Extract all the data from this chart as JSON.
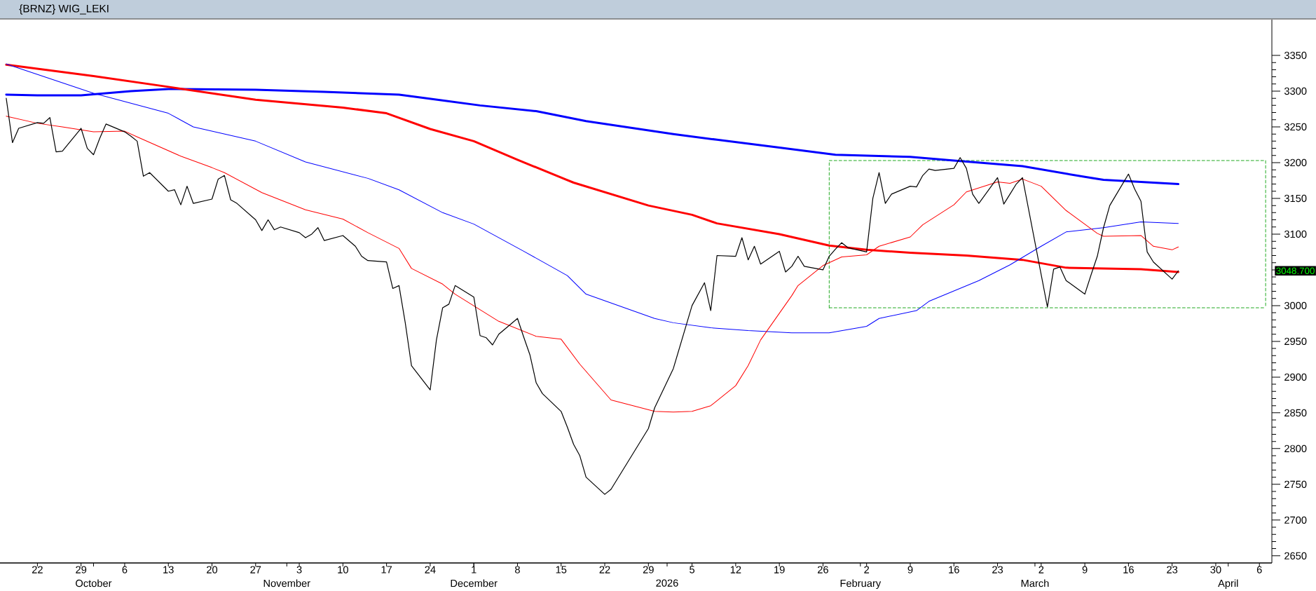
{
  "chart_data": {
    "type": "line",
    "title": "{BRNZ} WIG_LEKI",
    "xlim": [
      "2025-09-16",
      "2026-04-08"
    ],
    "ylim": [
      2640,
      3400
    ],
    "xticks": [
      {
        "value": "2025-09-22",
        "label": "22"
      },
      {
        "value": "2025-09-29",
        "label": "29"
      },
      {
        "value": "2025-10-06",
        "label": "6"
      },
      {
        "value": "2025-10-13",
        "label": "13"
      },
      {
        "value": "2025-10-20",
        "label": "20"
      },
      {
        "value": "2025-10-27",
        "label": "27"
      },
      {
        "value": "2025-11-03",
        "label": "3"
      },
      {
        "value": "2025-11-10",
        "label": "10"
      },
      {
        "value": "2025-11-17",
        "label": "17"
      },
      {
        "value": "2025-11-24",
        "label": "24"
      },
      {
        "value": "2025-12-01",
        "label": "1"
      },
      {
        "value": "2025-12-08",
        "label": "8"
      },
      {
        "value": "2025-12-15",
        "label": "15"
      },
      {
        "value": "2025-12-22",
        "label": "22"
      },
      {
        "value": "2025-12-29",
        "label": "29"
      },
      {
        "value": "2026-01-05",
        "label": "5"
      },
      {
        "value": "2026-01-12",
        "label": "12"
      },
      {
        "value": "2026-01-19",
        "label": "19"
      },
      {
        "value": "2026-01-26",
        "label": "26"
      },
      {
        "value": "2026-02-02",
        "label": "2"
      },
      {
        "value": "2026-02-09",
        "label": "9"
      },
      {
        "value": "2026-02-16",
        "label": "16"
      },
      {
        "value": "2026-02-23",
        "label": "23"
      },
      {
        "value": "2026-03-02",
        "label": "2"
      },
      {
        "value": "2026-03-09",
        "label": "9"
      },
      {
        "value": "2026-03-16",
        "label": "16"
      },
      {
        "value": "2026-03-23",
        "label": "23"
      },
      {
        "value": "2026-03-30",
        "label": "30"
      },
      {
        "value": "2026-04-06",
        "label": "6"
      }
    ],
    "x2lim": [
      "2025-09-16",
      "2026-04-08"
    ],
    "x2ticks": [
      {
        "value": "2025-10-01",
        "label": "October"
      },
      {
        "value": "2025-11-01",
        "label": "November"
      },
      {
        "value": "2025-12-01",
        "label": "December"
      },
      {
        "value": "2026-01-01",
        "label": "2026"
      },
      {
        "value": "2026-02-01",
        "label": "February"
      },
      {
        "value": "2026-03-01",
        "label": "March"
      },
      {
        "value": "2026-04-01",
        "label": "April"
      }
    ],
    "yticks": [
      2650,
      2700,
      2750,
      2800,
      2850,
      2900,
      2950,
      3000,
      {
        "value": 3050,
        "label": null
      },
      3100,
      3150,
      3200,
      3250,
      3300,
      3350
    ],
    "annotations": [
      "3048.700"
    ],
    "series": [
      {
        "type": "line",
        "color": "#22aa22",
        "line_style": "dashed",
        "x": [
          "2026-01-27",
          "2026-01-27",
          "2026-04-07",
          "2026-04-07"
        ],
        "values": [
          2997,
          3203,
          3203,
          2997
        ]
      },
      {
        "type": "line",
        "color": "#22aa22",
        "line_style": "dashed",
        "x": [
          "2026-01-27",
          "2026-04-07"
        ],
        "values": [
          2997,
          2997
        ]
      },
      {
        "color": "#0000ff",
        "x": [
          "2025-09-17",
          "2025-09-22",
          "2025-09-29",
          "2025-10-07",
          "2025-10-13",
          "2025-10-27",
          "2025-11-07",
          "2025-11-19",
          "2025-11-26",
          "2025-12-02",
          "2025-12-11",
          "2025-12-19",
          "2026-01-02",
          "2026-01-09",
          "2026-01-19",
          "2026-01-28",
          "2026-02-09",
          "2026-02-16",
          "2026-02-27",
          "2026-03-09",
          "2026-03-12",
          "2026-03-24"
        ],
        "values": [
          3295,
          3294,
          3294,
          3300,
          3303,
          3302,
          3299,
          3295,
          3287,
          3280,
          3272,
          3258,
          3240,
          3232,
          3221,
          3211,
          3208,
          3203,
          3195,
          3180,
          3176,
          3170
        ]
      },
      {
        "color": "#ff0000",
        "x": [
          "2025-09-17",
          "2025-10-01",
          "2025-10-13",
          "2025-10-27",
          "2025-11-10",
          "2025-11-17",
          "2025-11-24",
          "2025-12-01",
          "2025-12-08",
          "2025-12-17",
          "2025-12-29",
          "2026-01-05",
          "2026-01-09",
          "2026-01-19",
          "2026-01-27",
          "2026-02-02",
          "2026-02-09",
          "2026-02-18",
          "2026-02-27",
          "2026-03-06",
          "2026-03-18",
          "2026-03-24"
        ],
        "values": [
          3337,
          3321,
          3306,
          3288,
          3277,
          3269,
          3247,
          3230,
          3204,
          3172,
          3140,
          3127,
          3115,
          3100,
          3084,
          3078,
          3074,
          3070,
          3064,
          3053,
          3051,
          3047
        ]
      },
      {
        "color": "#0000ff",
        "x": [
          "2025-09-17",
          "2025-10-01",
          "2025-10-13",
          "2025-10-17",
          "2025-10-27",
          "2025-11-04",
          "2025-11-14",
          "2025-11-19",
          "2025-11-26",
          "2025-12-01",
          "2025-12-09",
          "2025-12-16",
          "2025-12-19",
          "2025-12-30",
          "2026-01-02",
          "2026-01-08",
          "2026-01-14",
          "2026-01-21",
          "2026-01-27",
          "2026-02-02",
          "2026-02-04",
          "2026-02-10",
          "2026-02-12",
          "2026-02-20",
          "2026-02-25",
          "2026-03-02",
          "2026-03-06",
          "2026-03-12",
          "2026-03-18",
          "2026-03-24"
        ],
        "values": [
          3338,
          3297,
          3269,
          3250,
          3230,
          3201,
          3178,
          3162,
          3130,
          3114,
          3076,
          3042,
          3016,
          2982,
          2976,
          2969,
          2965,
          2962,
          2962,
          2971,
          2982,
          2993,
          3006,
          3035,
          3057,
          3083,
          3103,
          3109,
          3117,
          3115
        ]
      },
      {
        "color": "#ff0000",
        "x": [
          "2025-09-17",
          "2025-09-22",
          "2025-09-26",
          "2025-10-01",
          "2025-10-06",
          "2025-10-08",
          "2025-10-15",
          "2025-10-20",
          "2025-10-22",
          "2025-10-28",
          "2025-11-04",
          "2025-11-10",
          "2025-11-14",
          "2025-11-19",
          "2025-11-21",
          "2025-11-26",
          "2025-11-28",
          "2025-12-05",
          "2025-12-11",
          "2025-12-15",
          "2025-12-18",
          "2025-12-23",
          "2025-12-30",
          "2026-01-02",
          "2026-01-05",
          "2026-01-08",
          "2026-01-12",
          "2026-01-14",
          "2026-01-16",
          "2026-01-21",
          "2026-01-22",
          "2026-01-26",
          "2026-01-29",
          "2026-02-02",
          "2026-02-04",
          "2026-02-09",
          "2026-02-11",
          "2026-02-16",
          "2026-02-18",
          "2026-02-23",
          "2026-02-25",
          "2026-02-27",
          "2026-03-02",
          "2026-03-06",
          "2026-03-11",
          "2026-03-12",
          "2026-03-18",
          "2026-03-20",
          "2026-03-23",
          "2026-03-24"
        ],
        "values": [
          3265,
          3255,
          3250,
          3243,
          3244,
          3236,
          3209,
          3193,
          3186,
          3158,
          3134,
          3121,
          3102,
          3080,
          3052,
          3030,
          3016,
          2978,
          2957,
          2953,
          2918,
          2868,
          2852,
          2851,
          2852,
          2860,
          2888,
          2916,
          2952,
          3014,
          3028,
          3056,
          3068,
          3071,
          3083,
          3096,
          3113,
          3141,
          3159,
          3173,
          3171,
          3177,
          3167,
          3133,
          3101,
          3097,
          3098,
          3083,
          3078,
          3082
        ]
      },
      {
        "color": "#000000",
        "x": [
          "2025-09-17",
          "2025-09-18",
          "2025-09-19",
          "2025-09-22",
          "2025-09-23",
          "2025-09-24",
          "2025-09-25",
          "2025-09-26",
          "2025-09-29",
          "2025-09-30",
          "2025-10-01",
          "2025-10-02",
          "2025-10-03",
          "2025-10-06",
          "2025-10-07",
          "2025-10-08",
          "2025-10-09",
          "2025-10-10",
          "2025-10-13",
          "2025-10-14",
          "2025-10-15",
          "2025-10-16",
          "2025-10-17",
          "2025-10-20",
          "2025-10-21",
          "2025-10-22",
          "2025-10-23",
          "2025-10-24",
          "2025-10-27",
          "2025-10-28",
          "2025-10-29",
          "2025-10-30",
          "2025-10-31",
          "2025-11-03",
          "2025-11-04",
          "2025-11-05",
          "2025-11-06",
          "2025-11-07",
          "2025-11-10",
          "2025-11-12",
          "2025-11-13",
          "2025-11-14",
          "2025-11-17",
          "2025-11-18",
          "2025-11-19",
          "2025-11-20",
          "2025-11-21",
          "2025-11-24",
          "2025-11-25",
          "2025-11-26",
          "2025-11-27",
          "2025-11-28",
          "2025-12-01",
          "2025-12-02",
          "2025-12-03",
          "2025-12-04",
          "2025-12-05",
          "2025-12-08",
          "2025-12-09",
          "2025-12-10",
          "2025-12-11",
          "2025-12-12",
          "2025-12-15",
          "2025-12-16",
          "2025-12-17",
          "2025-12-18",
          "2025-12-19",
          "2025-12-22",
          "2025-12-23",
          "2025-12-29",
          "2025-12-30",
          "2026-01-02",
          "2026-01-05",
          "2026-01-07",
          "2026-01-08",
          "2026-01-09",
          "2026-01-12",
          "2026-01-13",
          "2026-01-14",
          "2026-01-15",
          "2026-01-16",
          "2026-01-19",
          "2026-01-20",
          "2026-01-21",
          "2026-01-22",
          "2026-01-23",
          "2026-01-26",
          "2026-01-27",
          "2026-01-28",
          "2026-01-29",
          "2026-01-30",
          "2026-02-02",
          "2026-02-03",
          "2026-02-04",
          "2026-02-05",
          "2026-02-06",
          "2026-02-09",
          "2026-02-10",
          "2026-02-11",
          "2026-02-12",
          "2026-02-13",
          "2026-02-16",
          "2026-02-17",
          "2026-02-18",
          "2026-02-19",
          "2026-02-20",
          "2026-02-23",
          "2026-02-24",
          "2026-02-25",
          "2026-02-26",
          "2026-02-27",
          "2026-03-03",
          "2026-03-04",
          "2026-03-05",
          "2026-03-06",
          "2026-03-09",
          "2026-03-10",
          "2026-03-11",
          "2026-03-12",
          "2026-03-13",
          "2026-03-16",
          "2026-03-17",
          "2026-03-18",
          "2026-03-19",
          "2026-03-20",
          "2026-03-23",
          "2026-03-24"
        ],
        "values": [
          3290,
          3228,
          3248,
          3256,
          3255,
          3263,
          3215,
          3216,
          3248,
          3220,
          3211,
          3234,
          3254,
          3243,
          3237,
          3230,
          3181,
          3186,
          3160,
          3162,
          3141,
          3167,
          3143,
          3149,
          3177,
          3182,
          3148,
          3143,
          3120,
          3105,
          3120,
          3106,
          3110,
          3102,
          3095,
          3100,
          3109,
          3091,
          3098,
          3083,
          3069,
          3063,
          3061,
          3024,
          3028,
          2976,
          2916,
          2882,
          2952,
          2997,
          3002,
          3028,
          3012,
          2958,
          2955,
          2945,
          2960,
          2982,
          2956,
          2931,
          2892,
          2877,
          2852,
          2830,
          2806,
          2790,
          2760,
          2736,
          2743,
          2828,
          2857,
          2912,
          3000,
          3032,
          2993,
          3070,
          3069,
          3095,
          3064,
          3083,
          3058,
          3076,
          3047,
          3055,
          3069,
          3055,
          3050,
          3069,
          3079,
          3088,
          3081,
          3075,
          3150,
          3186,
          3143,
          3156,
          3167,
          3166,
          3182,
          3191,
          3189,
          3192,
          3207,
          3192,
          3156,
          3143,
          3179,
          3142,
          3156,
          3170,
          3179,
          2998,
          3051,
          3054,
          3035,
          3016,
          3043,
          3069,
          3109,
          3140,
          3184,
          3163,
          3146,
          3075,
          3061,
          3037,
          3048.7
        ]
      }
    ]
  }
}
